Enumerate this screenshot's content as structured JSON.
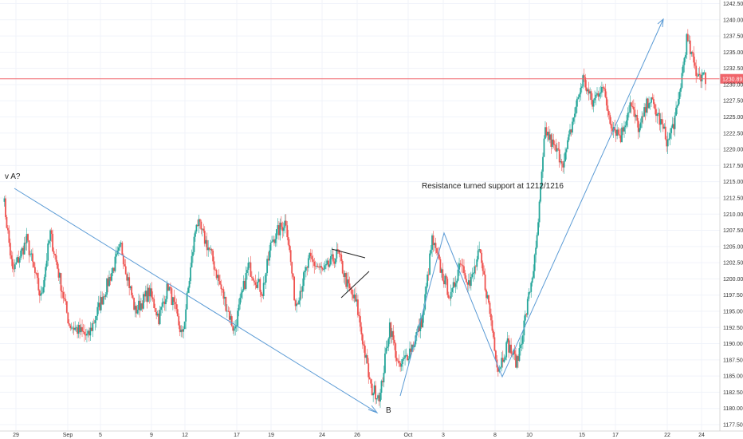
{
  "chart_data": {
    "type": "candlestick",
    "title": "",
    "xlabel": "",
    "ylabel": "",
    "ylim": [
      1177.5,
      1242.5
    ],
    "y_ticks": [
      1242.5,
      1240.0,
      1237.5,
      1235.0,
      1232.5,
      1230.0,
      1227.5,
      1225.0,
      1222.5,
      1220.0,
      1217.5,
      1215.0,
      1212.5,
      1210.0,
      1207.5,
      1205.0,
      1202.5,
      1200.0,
      1197.5,
      1195.0,
      1192.5,
      1190.0,
      1187.5,
      1185.0,
      1182.5,
      1180.0,
      1177.5
    ],
    "x_ticks": [
      "29",
      "Sep",
      "5",
      "9",
      "12",
      "17",
      "19",
      "24",
      "26",
      "Oct",
      "3",
      "8",
      "10",
      "15",
      "17",
      "22",
      "24"
    ],
    "grid": true,
    "colors": {
      "up": "#26a69a",
      "down": "#ef5350",
      "grid": "#f0f3fa",
      "arrow": "#5b9bd5",
      "price_line": "#f0646a"
    },
    "current_price": {
      "value": 1230.89,
      "label": "1230.89"
    },
    "path": [
      {
        "x": 0,
        "y": 1213
      },
      {
        "x": 2,
        "y": 1201
      },
      {
        "x": 5,
        "y": 1206
      },
      {
        "x": 8,
        "y": 1197
      },
      {
        "x": 10,
        "y": 1207
      },
      {
        "x": 14,
        "y": 1193
      },
      {
        "x": 18,
        "y": 1191
      },
      {
        "x": 22,
        "y": 1199
      },
      {
        "x": 25,
        "y": 1205
      },
      {
        "x": 28,
        "y": 1195
      },
      {
        "x": 31,
        "y": 1198
      },
      {
        "x": 33,
        "y": 1194
      },
      {
        "x": 35,
        "y": 1199
      },
      {
        "x": 38,
        "y": 1191
      },
      {
        "x": 41,
        "y": 1209
      },
      {
        "x": 44,
        "y": 1204
      },
      {
        "x": 46,
        "y": 1199
      },
      {
        "x": 49,
        "y": 1192
      },
      {
        "x": 52,
        "y": 1202
      },
      {
        "x": 55,
        "y": 1198
      },
      {
        "x": 57,
        "y": 1206
      },
      {
        "x": 60,
        "y": 1209
      },
      {
        "x": 62,
        "y": 1196
      },
      {
        "x": 65,
        "y": 1203
      },
      {
        "x": 68,
        "y": 1201
      },
      {
        "x": 71,
        "y": 1204
      },
      {
        "x": 73,
        "y": 1199
      },
      {
        "x": 75,
        "y": 1196
      },
      {
        "x": 78,
        "y": 1183
      },
      {
        "x": 80,
        "y": 1182
      },
      {
        "x": 82,
        "y": 1193
      },
      {
        "x": 84,
        "y": 1186
      },
      {
        "x": 87,
        "y": 1190
      },
      {
        "x": 89,
        "y": 1194
      },
      {
        "x": 91,
        "y": 1206
      },
      {
        "x": 93,
        "y": 1201
      },
      {
        "x": 95,
        "y": 1197
      },
      {
        "x": 97,
        "y": 1203
      },
      {
        "x": 99,
        "y": 1199
      },
      {
        "x": 101,
        "y": 1204
      },
      {
        "x": 103,
        "y": 1196
      },
      {
        "x": 105,
        "y": 1186
      },
      {
        "x": 107,
        "y": 1190
      },
      {
        "x": 109,
        "y": 1187
      },
      {
        "x": 111,
        "y": 1195
      },
      {
        "x": 113,
        "y": 1204
      },
      {
        "x": 115,
        "y": 1223
      },
      {
        "x": 117,
        "y": 1220
      },
      {
        "x": 119,
        "y": 1218
      },
      {
        "x": 121,
        "y": 1225
      },
      {
        "x": 123,
        "y": 1231
      },
      {
        "x": 125,
        "y": 1227
      },
      {
        "x": 127,
        "y": 1230
      },
      {
        "x": 129,
        "y": 1224
      },
      {
        "x": 131,
        "y": 1222
      },
      {
        "x": 133,
        "y": 1227
      },
      {
        "x": 135,
        "y": 1223
      },
      {
        "x": 137,
        "y": 1228
      },
      {
        "x": 139,
        "y": 1225
      },
      {
        "x": 141,
        "y": 1221
      },
      {
        "x": 143,
        "y": 1226
      },
      {
        "x": 145,
        "y": 1237
      },
      {
        "x": 147,
        "y": 1232
      },
      {
        "x": 149,
        "y": 1231
      }
    ],
    "annotations": [
      {
        "text": "v A?"
      },
      {
        "text": "B"
      },
      {
        "text": "Resistance turned support at 1212/1216"
      }
    ]
  }
}
